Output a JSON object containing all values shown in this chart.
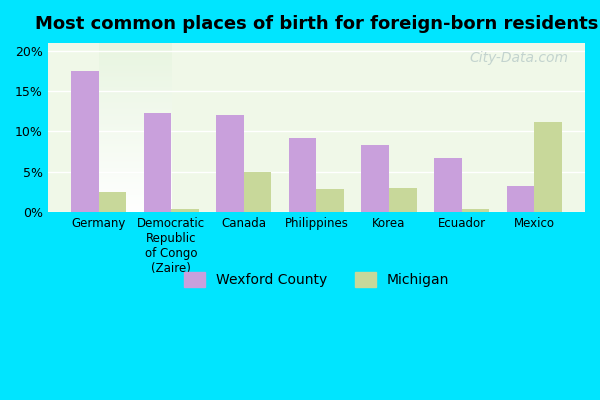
{
  "title": "Most common places of birth for foreign-born residents",
  "categories": [
    "Germany",
    "Democratic\nRepublic\nof Congo\n(Zaire)",
    "Canada",
    "Philippines",
    "Korea",
    "Ecuador",
    "Mexico"
  ],
  "wexford_values": [
    17.5,
    12.3,
    12.0,
    9.2,
    8.3,
    6.7,
    3.2
  ],
  "michigan_values": [
    2.4,
    0.4,
    5.0,
    2.8,
    3.0,
    0.3,
    11.2
  ],
  "wexford_color": "#c9a0dc",
  "michigan_color": "#c8d89a",
  "background_outer": "#00e5ff",
  "background_inner_top": "#f0f8e8",
  "background_inner_bottom": "#ffffff",
  "ylim": [
    0,
    21
  ],
  "yticks": [
    0,
    5,
    10,
    15,
    20
  ],
  "ytick_labels": [
    "0%",
    "5%",
    "10%",
    "15%",
    "20%"
  ],
  "bar_width": 0.38,
  "legend_wexford": "Wexford County",
  "legend_michigan": "Michigan",
  "watermark": "City-Data.com"
}
